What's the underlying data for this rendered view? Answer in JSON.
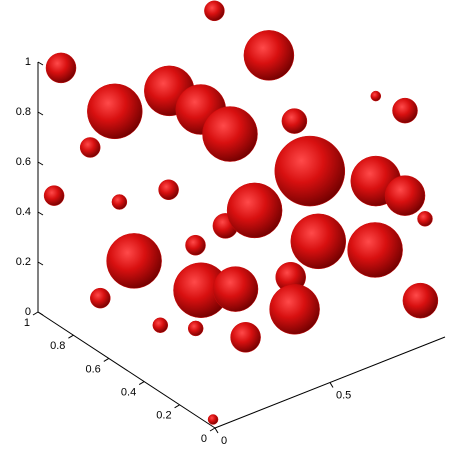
{
  "chart_data": {
    "type": "isosurface3d",
    "color": "#cc0a0a",
    "x": [
      0.18,
      0.34,
      0.4,
      0.45,
      0.85,
      0.72,
      0.93,
      0.98,
      0.48,
      0.11,
      0.17,
      0.32,
      0.68,
      0.85,
      0.5,
      0.21,
      0.97,
      0.1,
      0.98,
      0.69,
      0.73,
      0.56,
      0.26,
      0.07,
      0.04,
      0.07,
      0.07,
      0.43,
      0.3,
      0.15,
      0.2,
      0.99,
      0.93,
      0.03
    ],
    "y": [
      0.8,
      0.7,
      0.6,
      0.5,
      0.8,
      0.4,
      0.3,
      0.2,
      0.4,
      0.6,
      0.3,
      0.3,
      0.3,
      0.2,
      0.2,
      0.1,
      0.1,
      1.0,
      0.2,
      0.9,
      0.5,
      0.3,
      0.6,
      1.0,
      0.7,
      0.4,
      0.2,
      0.5,
      0.5,
      0.9,
      0.8,
      0.1,
      0.3,
      0.05
    ],
    "z": [
      0.83,
      0.9,
      0.85,
      0.78,
      0.81,
      0.58,
      0.51,
      0.48,
      0.51,
      0.35,
      0.35,
      0.3,
      0.36,
      0.31,
      0.2,
      0.24,
      0.11,
      0.94,
      0.82,
      1.0,
      0.73,
      0.26,
      0.58,
      0.44,
      0.18,
      0.2,
      0.28,
      0.42,
      0.39,
      0.65,
      0.46,
      0.43,
      0.85,
      0.0
    ],
    "sizes": [
      0.11,
      0.1,
      0.1,
      0.11,
      0.1,
      0.14,
      0.1,
      0.08,
      0.11,
      0.11,
      0.11,
      0.09,
      0.11,
      0.11,
      0.1,
      0.06,
      0.07,
      0.06,
      0.05,
      0.04,
      0.05,
      0.06,
      0.04,
      0.04,
      0.04,
      0.03,
      0.03,
      0.05,
      0.04,
      0.04,
      0.03,
      0.03,
      0.02,
      0.02
    ],
    "xlim": [
      0,
      1
    ],
    "ylim": [
      0,
      1
    ],
    "zlim": [
      0,
      1
    ],
    "xticks": [
      0,
      0.5
    ],
    "yticks": [
      0,
      0.2,
      0.4,
      0.6,
      0.8,
      1
    ],
    "zticks": [
      0,
      0.2,
      0.4,
      0.6,
      0.8,
      1
    ]
  }
}
